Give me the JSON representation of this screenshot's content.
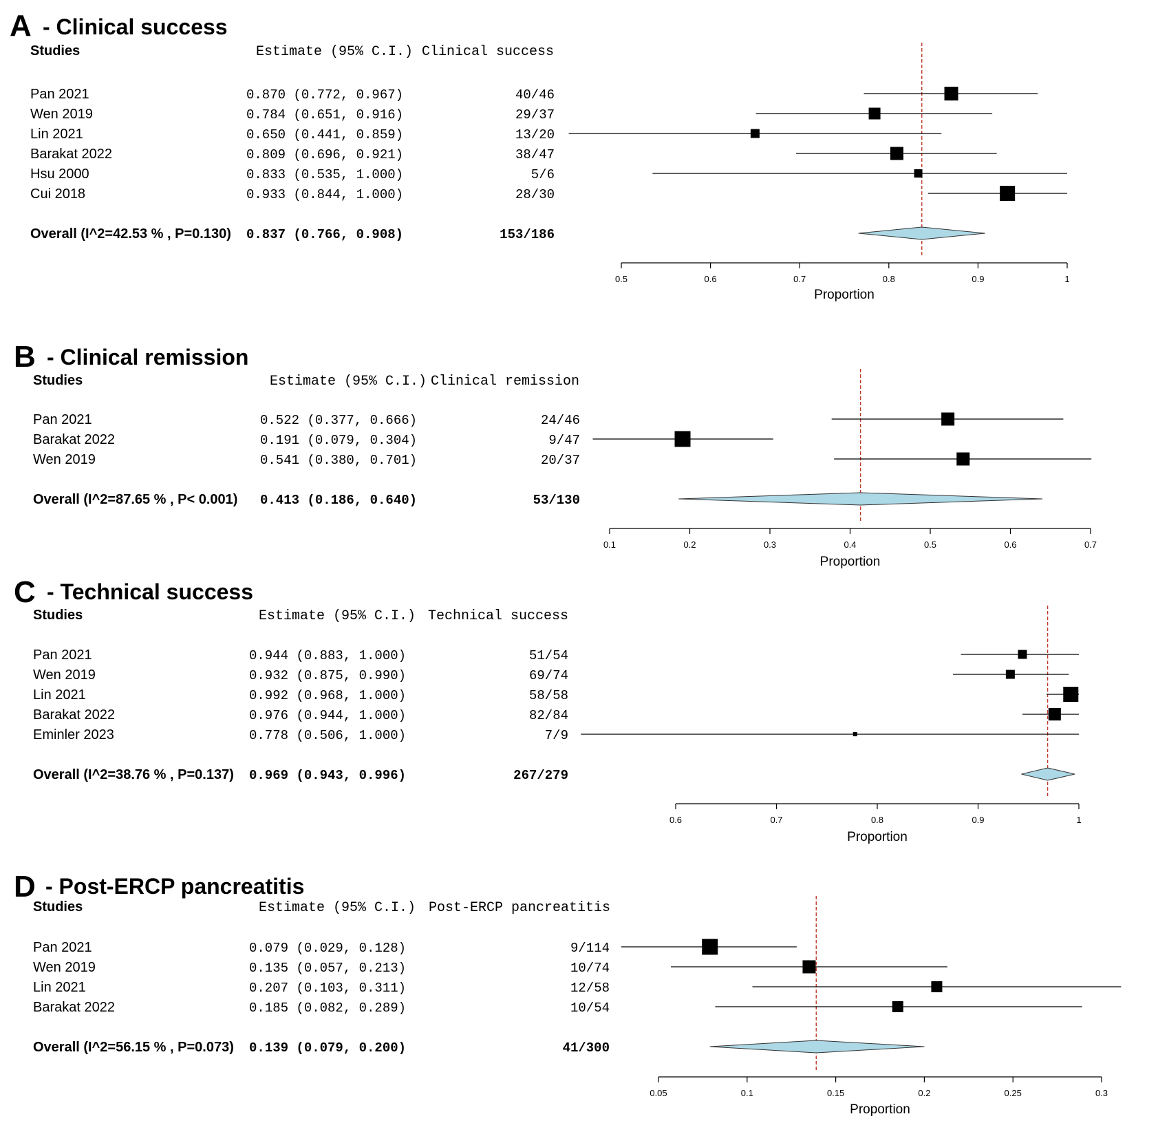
{
  "figure": {
    "background": "#ffffff",
    "diamond_fill": "#add8e6",
    "ref_line_color": "#c0392b",
    "mark_color": "#000000"
  },
  "chart_data": [
    {
      "type": "forest",
      "panel_letter": "A",
      "title": "- Clinical success",
      "studies_header": "Studies",
      "estimate_header": "Estimate (95% C.I.)",
      "count_header": "Clinical success",
      "xlabel": "Proportion",
      "xlim": [
        0.5,
        1
      ],
      "ticks": [
        0.5,
        0.6,
        0.7,
        0.8,
        0.9,
        1
      ],
      "tick_labels": [
        "0.5",
        "0.6",
        "0.7",
        "0.8",
        "0.9",
        "1"
      ],
      "studies": [
        {
          "name": "Pan 2021",
          "estimate": 0.87,
          "lower": 0.772,
          "upper": 0.967,
          "est_text": "0.870 (0.772, 0.967)",
          "count": "40/46",
          "weight": 1.0
        },
        {
          "name": "Wen 2019",
          "estimate": 0.784,
          "lower": 0.651,
          "upper": 0.916,
          "est_text": "0.784 (0.651, 0.916)",
          "count": "29/37",
          "weight": 0.85
        },
        {
          "name": "Lin 2021",
          "estimate": 0.65,
          "lower": 0.441,
          "upper": 0.859,
          "est_text": "0.650 (0.441, 0.859)",
          "count": "13/20",
          "weight": 0.65
        },
        {
          "name": "Barakat 2022",
          "estimate": 0.809,
          "lower": 0.696,
          "upper": 0.921,
          "est_text": "0.809 (0.696, 0.921)",
          "count": "38/47",
          "weight": 0.95
        },
        {
          "name": "Hsu 2000",
          "estimate": 0.833,
          "lower": 0.535,
          "upper": 1.0,
          "est_text": "0.833 (0.535, 1.000)",
          "count": "5/6",
          "weight": 0.6
        },
        {
          "name": "Cui 2018",
          "estimate": 0.933,
          "lower": 0.844,
          "upper": 1.0,
          "est_text": "0.933 (0.844, 1.000)",
          "count": "28/30",
          "weight": 1.1
        }
      ],
      "overall": {
        "label": "Overall (I^2=42.53 % , P=0.130)",
        "estimate": 0.837,
        "lower": 0.766,
        "upper": 0.908,
        "est_text": "0.837 (0.766, 0.908)",
        "count": "153/186"
      }
    },
    {
      "type": "forest",
      "panel_letter": "B",
      "title": "- Clinical remission",
      "studies_header": "Studies",
      "estimate_header": "Estimate (95% C.I.)",
      "count_header": "Clinical remission",
      "xlabel": "Proportion",
      "xlim": [
        0.1,
        0.7
      ],
      "ticks": [
        0.1,
        0.2,
        0.3,
        0.4,
        0.5,
        0.6,
        0.7
      ],
      "tick_labels": [
        "0.1",
        "0.2",
        "0.3",
        "0.4",
        "0.5",
        "0.6",
        "0.7"
      ],
      "studies": [
        {
          "name": "Pan 2021",
          "estimate": 0.522,
          "lower": 0.377,
          "upper": 0.666,
          "est_text": "0.522 (0.377, 0.666)",
          "count": "24/46",
          "weight": 0.95
        },
        {
          "name": "Barakat 2022",
          "estimate": 0.191,
          "lower": 0.079,
          "upper": 0.304,
          "est_text": "0.191 (0.079, 0.304)",
          "count": "9/47",
          "weight": 1.15
        },
        {
          "name": "Wen 2019",
          "estimate": 0.541,
          "lower": 0.38,
          "upper": 0.701,
          "est_text": "0.541 (0.380, 0.701)",
          "count": "20/37",
          "weight": 0.95
        }
      ],
      "overall": {
        "label": "Overall (I^2=87.65 % , P< 0.001)",
        "estimate": 0.413,
        "lower": 0.186,
        "upper": 0.64,
        "est_text": "0.413 (0.186, 0.640)",
        "count": "53/130"
      }
    },
    {
      "type": "forest",
      "panel_letter": "C",
      "title": "- Technical success",
      "studies_header": "Studies",
      "estimate_header": "Estimate (95% C.I.)",
      "count_header": "Technical success",
      "xlabel": "Proportion",
      "xlim": [
        0.6,
        1
      ],
      "ticks": [
        0.6,
        0.7,
        0.8,
        0.9,
        1
      ],
      "tick_labels": [
        "0.6",
        "0.7",
        "0.8",
        "0.9",
        "1"
      ],
      "studies": [
        {
          "name": "Pan 2021",
          "estimate": 0.944,
          "lower": 0.883,
          "upper": 1.0,
          "est_text": "0.944 (0.883, 1.000)",
          "count": "51/54",
          "weight": 0.65
        },
        {
          "name": "Wen 2019",
          "estimate": 0.932,
          "lower": 0.875,
          "upper": 0.99,
          "est_text": "0.932 (0.875, 0.990)",
          "count": "69/74",
          "weight": 0.65
        },
        {
          "name": "Lin 2021",
          "estimate": 0.992,
          "lower": 0.968,
          "upper": 1.0,
          "est_text": "0.992 (0.968, 1.000)",
          "count": "58/58",
          "weight": 1.1
        },
        {
          "name": "Barakat 2022",
          "estimate": 0.976,
          "lower": 0.944,
          "upper": 1.0,
          "est_text": "0.976 (0.944, 1.000)",
          "count": "82/84",
          "weight": 0.9
        },
        {
          "name": "Eminler 2023",
          "estimate": 0.778,
          "lower": 0.506,
          "upper": 1.0,
          "est_text": "0.778 (0.506, 1.000)",
          "count": "7/9",
          "weight": 0.3
        }
      ],
      "overall": {
        "label": "Overall (I^2=38.76 % , P=0.137)",
        "estimate": 0.969,
        "lower": 0.943,
        "upper": 0.996,
        "est_text": "0.969 (0.943, 0.996)",
        "count": "267/279"
      }
    },
    {
      "type": "forest",
      "panel_letter": "D",
      "title": "- Post-ERCP pancreatitis",
      "studies_header": "Studies",
      "estimate_header": "Estimate (95% C.I.)",
      "count_header": "Post-ERCP pancreatitis",
      "xlabel": "Proportion",
      "xlim": [
        0.05,
        0.3
      ],
      "ticks": [
        0.05,
        0.1,
        0.15,
        0.2,
        0.25,
        0.3
      ],
      "tick_labels": [
        "0.05",
        "0.1",
        "0.15",
        "0.2",
        "0.25",
        "0.3"
      ],
      "studies": [
        {
          "name": "Pan 2021",
          "estimate": 0.079,
          "lower": 0.029,
          "upper": 0.128,
          "est_text": "0.079 (0.029, 0.128)",
          "count": "9/114",
          "weight": 1.15
        },
        {
          "name": "Wen 2019",
          "estimate": 0.135,
          "lower": 0.057,
          "upper": 0.213,
          "est_text": "0.135 (0.057, 0.213)",
          "count": "10/74",
          "weight": 0.95
        },
        {
          "name": "Lin 2021",
          "estimate": 0.207,
          "lower": 0.103,
          "upper": 0.311,
          "est_text": "0.207 (0.103, 0.311)",
          "count": "12/58",
          "weight": 0.8
        },
        {
          "name": "Barakat 2022",
          "estimate": 0.185,
          "lower": 0.082,
          "upper": 0.289,
          "est_text": "0.185 (0.082, 0.289)",
          "count": "10/54",
          "weight": 0.8
        }
      ],
      "overall": {
        "label": "Overall (I^2=56.15 % , P=0.073)",
        "estimate": 0.139,
        "lower": 0.079,
        "upper": 0.2,
        "est_text": "0.139 (0.079, 0.200)",
        "count": "41/300"
      }
    }
  ]
}
